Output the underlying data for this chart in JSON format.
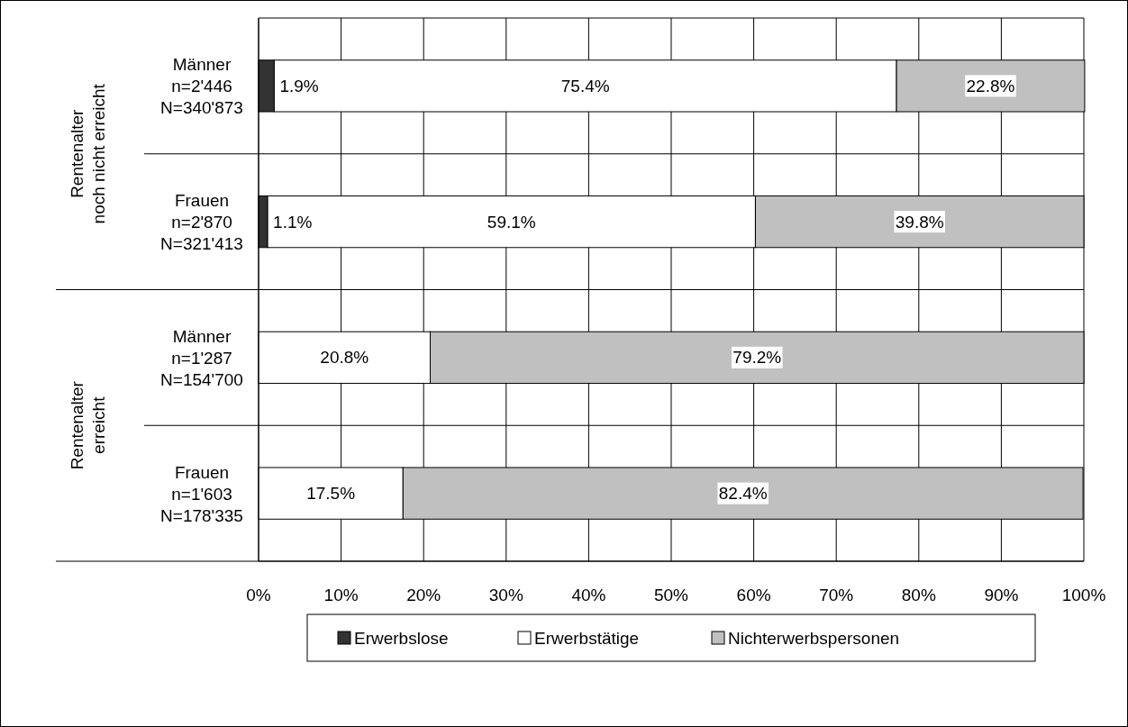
{
  "chart_data": {
    "type": "bar",
    "orientation": "horizontal",
    "stacked": true,
    "categories": [
      "Männer\nn=2'446\nN=340'873",
      "Frauen\nn=2'870\nN=321'413",
      "Männer\nn=1'287\nN=154'700",
      "Frauen\nn=1'603\nN=178'335"
    ],
    "series": [
      {
        "name": "Erwerbslose",
        "color": "#333333",
        "values": [
          1.9,
          1.1,
          0,
          null
        ],
        "value_labels": [
          "1.9%",
          "1.1%",
          null,
          null
        ]
      },
      {
        "name": "Erwerbstätige",
        "color": "#ffffff",
        "values": [
          75.4,
          59.1,
          20.8,
          17.5
        ],
        "value_labels": [
          "75.4%",
          "59.1%",
          "20.8%",
          "17.5%"
        ]
      },
      {
        "name": "Nichterwerbspersonen",
        "color": "#c0c0c0",
        "values": [
          22.8,
          39.8,
          79.2,
          82.4
        ],
        "value_labels": [
          "22.8%",
          "39.8%",
          "79.2%",
          "82.4%"
        ]
      }
    ],
    "annotations": [
      "Rentenalter\nnoch nicht erreicht",
      "Rentenalter\nerreicht"
    ],
    "xlim": [
      0,
      100
    ],
    "xticks": [
      {
        "value": 0,
        "label": "0%"
      },
      {
        "value": 10,
        "label": "10%"
      },
      {
        "value": 20,
        "label": "20%"
      },
      {
        "value": 30,
        "label": "30%"
      },
      {
        "value": 40,
        "label": "40%"
      },
      {
        "value": 50,
        "label": "50%"
      },
      {
        "value": 60,
        "label": "60%"
      },
      {
        "value": 70,
        "label": "70%"
      },
      {
        "value": 80,
        "label": "80%"
      },
      {
        "value": 90,
        "label": "90%"
      },
      {
        "value": 100,
        "label": "100%"
      }
    ],
    "grid": true,
    "legend": "bottom"
  }
}
